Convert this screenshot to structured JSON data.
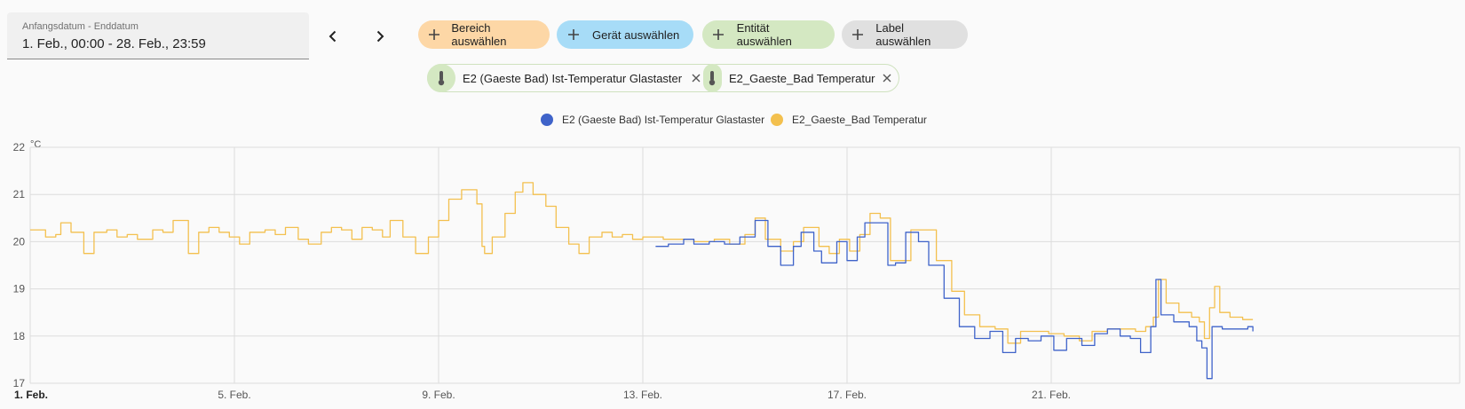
{
  "date_range": {
    "label": "Anfangsdatum - Enddatum",
    "value": "1. Feb., 00:00 - 28. Feb., 23:59"
  },
  "nav": {
    "prev_icon": "chevron-left-icon",
    "next_icon": "chevron-right-icon"
  },
  "filters": [
    {
      "label": "Bereich auswählen",
      "color": "#fdd7a6"
    },
    {
      "label": "Gerät auswählen",
      "color": "#a7dcf7"
    },
    {
      "label": "Entität auswählen",
      "color": "#d4e8c2"
    },
    {
      "label": "Label auswählen",
      "color": "#e0e0e0"
    }
  ],
  "selected_entities": [
    {
      "label": "E2 (Gaeste Bad) Ist-Temperatur Glastaster",
      "icon": "thermometer-icon"
    },
    {
      "label": "E2_Gaeste_Bad Temperatur",
      "icon": "thermometer-icon"
    }
  ],
  "chart_data": {
    "type": "line",
    "unit": "°C",
    "ylim": [
      17,
      22
    ],
    "yticks": [
      "17",
      "18",
      "19",
      "20",
      "21",
      "22"
    ],
    "xlim": [
      1,
      29
    ],
    "xticks": [
      {
        "day": 1,
        "label": "1. Feb.",
        "bold": true
      },
      {
        "day": 5,
        "label": "5. Feb.",
        "bold": false
      },
      {
        "day": 9,
        "label": "9. Feb.",
        "bold": false
      },
      {
        "day": 13,
        "label": "13. Feb.",
        "bold": false
      },
      {
        "day": 17,
        "label": "17. Feb.",
        "bold": false
      },
      {
        "day": 21,
        "label": "21. Feb.",
        "bold": false
      }
    ],
    "grid": true,
    "legend": "top-center",
    "series": [
      {
        "name": "E2 (Gaeste Bad) Ist-Temperatur Glastaster",
        "color": "#3f63c9",
        "points": [
          [
            13.25,
            19.9
          ],
          [
            13.5,
            19.95
          ],
          [
            13.8,
            20.05
          ],
          [
            14.0,
            19.95
          ],
          [
            14.3,
            20.0
          ],
          [
            14.6,
            19.95
          ],
          [
            14.9,
            20.1
          ],
          [
            15.2,
            20.45
          ],
          [
            15.45,
            19.9
          ],
          [
            15.7,
            19.5
          ],
          [
            15.95,
            19.9
          ],
          [
            16.1,
            20.2
          ],
          [
            16.35,
            19.8
          ],
          [
            16.5,
            19.55
          ],
          [
            16.8,
            20.0
          ],
          [
            17.0,
            19.6
          ],
          [
            17.2,
            20.1
          ],
          [
            17.35,
            20.4
          ],
          [
            17.55,
            20.4
          ],
          [
            17.8,
            19.5
          ],
          [
            17.95,
            19.55
          ],
          [
            18.15,
            20.2
          ],
          [
            18.4,
            20.0
          ],
          [
            18.6,
            19.5
          ],
          [
            18.9,
            18.8
          ],
          [
            19.2,
            18.2
          ],
          [
            19.5,
            17.95
          ],
          [
            19.8,
            18.1
          ],
          [
            20.05,
            17.65
          ],
          [
            20.3,
            17.95
          ],
          [
            20.55,
            17.9
          ],
          [
            20.8,
            18.0
          ],
          [
            21.05,
            17.7
          ],
          [
            21.3,
            17.95
          ],
          [
            21.6,
            17.8
          ],
          [
            21.85,
            18.05
          ],
          [
            22.1,
            18.15
          ],
          [
            22.35,
            18.0
          ],
          [
            22.55,
            17.95
          ],
          [
            22.75,
            17.65
          ],
          [
            22.95,
            18.2
          ],
          [
            23.05,
            19.2
          ],
          [
            23.15,
            18.45
          ],
          [
            23.4,
            18.3
          ],
          [
            23.7,
            18.2
          ],
          [
            23.85,
            17.9
          ],
          [
            23.95,
            17.75
          ],
          [
            24.05,
            17.1
          ],
          [
            24.15,
            18.2
          ],
          [
            24.35,
            18.15
          ],
          [
            24.6,
            18.15
          ],
          [
            24.85,
            18.2
          ],
          [
            24.95,
            18.1
          ]
        ]
      },
      {
        "name": "E2_Gaeste_Bad Temperatur",
        "color": "#f3c04e",
        "points": [
          [
            1.0,
            20.25
          ],
          [
            1.3,
            20.1
          ],
          [
            1.5,
            20.15
          ],
          [
            1.6,
            20.4
          ],
          [
            1.8,
            20.2
          ],
          [
            2.05,
            19.75
          ],
          [
            2.25,
            20.2
          ],
          [
            2.5,
            20.25
          ],
          [
            2.7,
            20.1
          ],
          [
            2.9,
            20.15
          ],
          [
            3.1,
            20.05
          ],
          [
            3.4,
            20.25
          ],
          [
            3.6,
            20.2
          ],
          [
            3.8,
            20.45
          ],
          [
            4.1,
            19.75
          ],
          [
            4.3,
            20.2
          ],
          [
            4.5,
            20.3
          ],
          [
            4.7,
            20.2
          ],
          [
            4.9,
            20.1
          ],
          [
            5.1,
            19.95
          ],
          [
            5.3,
            20.2
          ],
          [
            5.6,
            20.25
          ],
          [
            5.8,
            20.15
          ],
          [
            6.0,
            20.3
          ],
          [
            6.25,
            20.05
          ],
          [
            6.45,
            19.95
          ],
          [
            6.7,
            20.2
          ],
          [
            6.9,
            20.3
          ],
          [
            7.1,
            20.25
          ],
          [
            7.3,
            20.05
          ],
          [
            7.5,
            20.3
          ],
          [
            7.7,
            20.25
          ],
          [
            7.9,
            20.1
          ],
          [
            8.05,
            20.45
          ],
          [
            8.3,
            20.1
          ],
          [
            8.55,
            19.75
          ],
          [
            8.8,
            20.1
          ],
          [
            9.0,
            20.45
          ],
          [
            9.2,
            20.9
          ],
          [
            9.45,
            21.1
          ],
          [
            9.7,
            21.1
          ],
          [
            9.75,
            20.8
          ],
          [
            9.85,
            19.9
          ],
          [
            9.9,
            19.75
          ],
          [
            10.05,
            20.1
          ],
          [
            10.3,
            20.6
          ],
          [
            10.5,
            21.05
          ],
          [
            10.65,
            21.25
          ],
          [
            10.85,
            21.0
          ],
          [
            11.1,
            20.75
          ],
          [
            11.3,
            20.3
          ],
          [
            11.55,
            19.95
          ],
          [
            11.75,
            19.75
          ],
          [
            11.95,
            20.1
          ],
          [
            12.2,
            20.2
          ],
          [
            12.4,
            20.1
          ],
          [
            12.6,
            20.15
          ],
          [
            12.8,
            20.05
          ],
          [
            13.0,
            20.1
          ],
          [
            13.4,
            20.05
          ],
          [
            13.7,
            20.05
          ],
          [
            14.0,
            20.0
          ],
          [
            14.4,
            20.05
          ],
          [
            14.7,
            19.95
          ],
          [
            15.0,
            20.15
          ],
          [
            15.2,
            20.5
          ],
          [
            15.4,
            20.05
          ],
          [
            15.7,
            19.8
          ],
          [
            15.95,
            20.0
          ],
          [
            16.15,
            20.3
          ],
          [
            16.45,
            19.9
          ],
          [
            16.65,
            19.75
          ],
          [
            16.85,
            20.05
          ],
          [
            17.05,
            19.8
          ],
          [
            17.25,
            20.15
          ],
          [
            17.45,
            20.6
          ],
          [
            17.65,
            20.5
          ],
          [
            17.85,
            19.6
          ],
          [
            18.05,
            19.6
          ],
          [
            18.25,
            20.25
          ],
          [
            18.5,
            20.25
          ],
          [
            18.75,
            19.6
          ],
          [
            19.05,
            18.95
          ],
          [
            19.3,
            18.45
          ],
          [
            19.6,
            18.2
          ],
          [
            19.9,
            18.15
          ],
          [
            20.15,
            17.85
          ],
          [
            20.4,
            18.1
          ],
          [
            20.65,
            18.1
          ],
          [
            20.95,
            18.05
          ],
          [
            21.25,
            18.0
          ],
          [
            21.55,
            17.9
          ],
          [
            21.8,
            18.1
          ],
          [
            22.1,
            18.15
          ],
          [
            22.4,
            18.15
          ],
          [
            22.65,
            18.1
          ],
          [
            22.85,
            18.2
          ],
          [
            23.0,
            18.4
          ],
          [
            23.1,
            19.2
          ],
          [
            23.25,
            18.7
          ],
          [
            23.5,
            18.5
          ],
          [
            23.75,
            18.4
          ],
          [
            23.9,
            18.3
          ],
          [
            24.0,
            17.95
          ],
          [
            24.1,
            18.6
          ],
          [
            24.2,
            19.05
          ],
          [
            24.3,
            18.5
          ],
          [
            24.5,
            18.4
          ],
          [
            24.75,
            18.35
          ],
          [
            24.95,
            18.35
          ]
        ]
      }
    ]
  }
}
